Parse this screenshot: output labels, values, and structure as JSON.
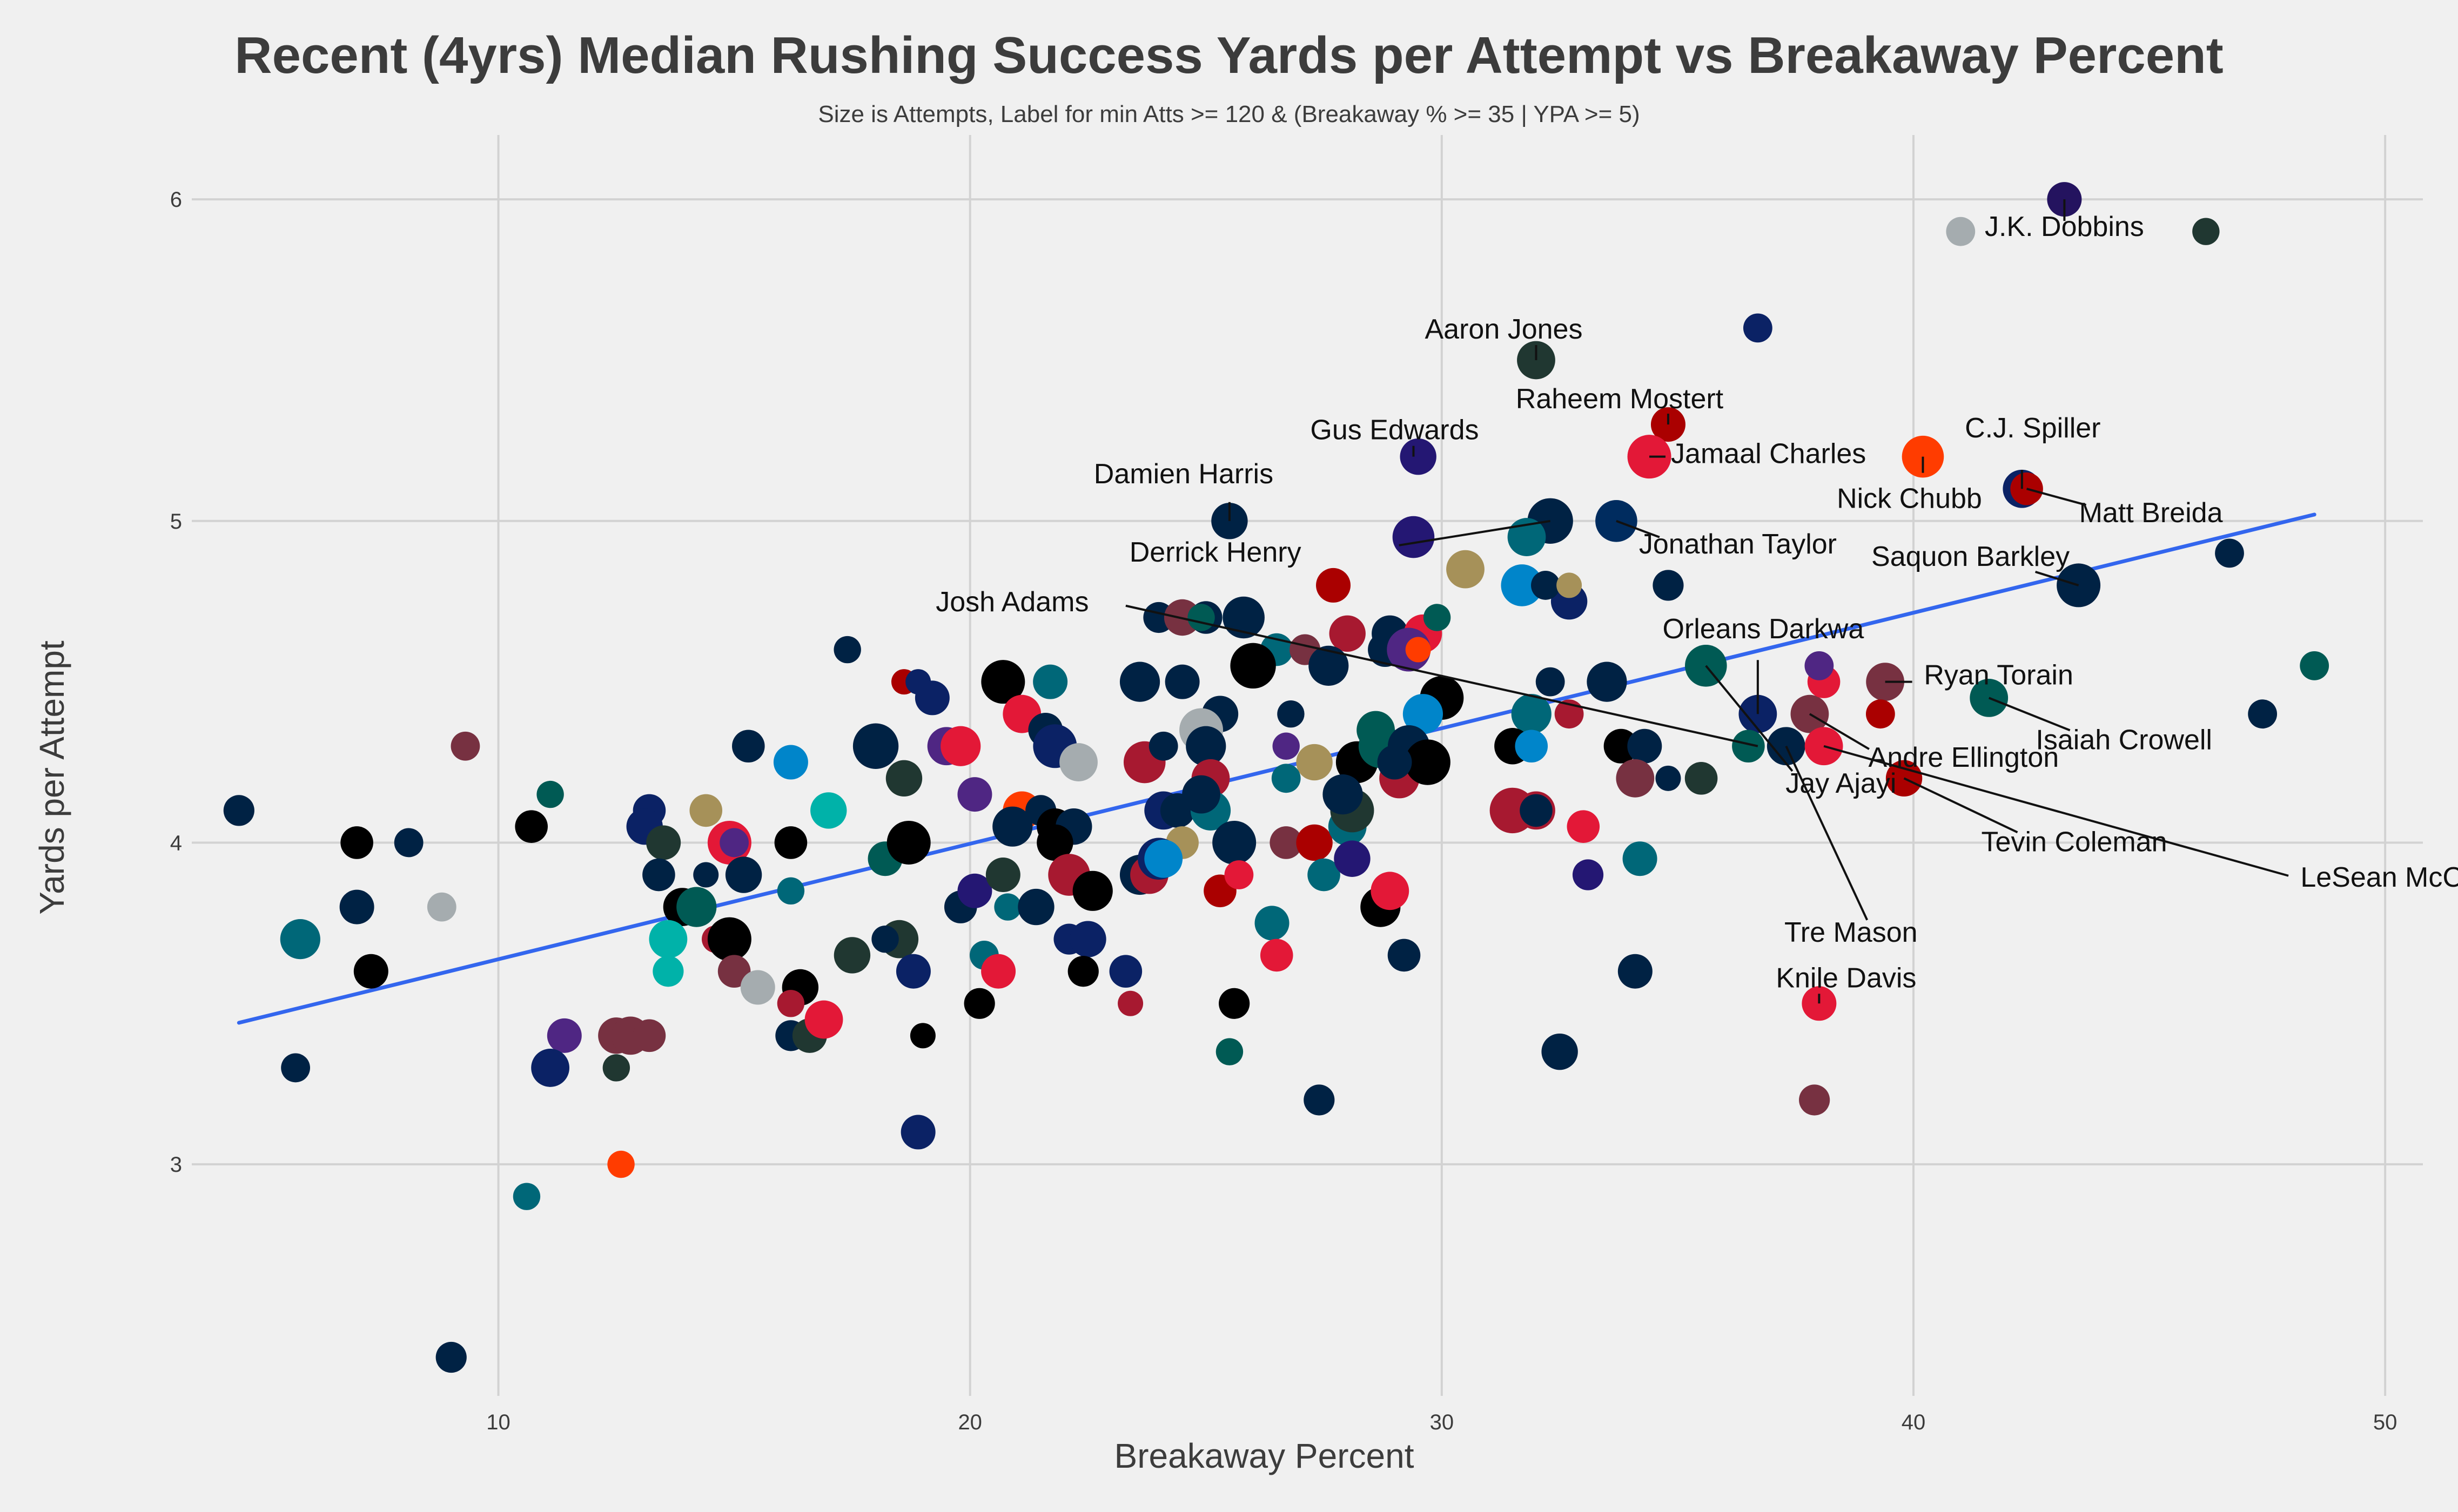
{
  "chart_data": {
    "type": "scatter",
    "title": "Recent (4yrs) Median Rushing Success Yards per Attempt vs Breakaway Percent",
    "subtitle": "Size is Attempts, Label for min Atts >= 120 & (Breakaway % >= 35 | YPA >= 5)",
    "xlabel": "Breakaway Percent",
    "ylabel": "Yards per Attempt",
    "xlim": [
      3.5,
      50.8
    ],
    "ylim": [
      2.28,
      6.2
    ],
    "x_ticks": [
      10,
      20,
      30,
      40,
      50
    ],
    "y_ticks": [
      3,
      4,
      5,
      6
    ],
    "grid": true,
    "trend": {
      "x1": 4.5,
      "y1": 3.44,
      "x2": 48.5,
      "y2": 5.02,
      "color": "#3366ee"
    },
    "labels": [
      {
        "text": "J.K. Dobbins",
        "x": 43.2,
        "y": 6.0
      },
      {
        "text": "Aaron Jones",
        "x": 32.0,
        "y": 5.5
      },
      {
        "text": "Raheem Mostert",
        "x": 34.8,
        "y": 5.3
      },
      {
        "text": "Jamaal Charles",
        "x": 34.4,
        "y": 5.2
      },
      {
        "text": "C.J. Spiller",
        "x": 42.3,
        "y": 5.1
      },
      {
        "text": "Nick Chubb",
        "x": 40.2,
        "y": 5.2
      },
      {
        "text": "Matt Breida",
        "x": 42.4,
        "y": 5.1
      },
      {
        "text": "Damien Harris",
        "x": 25.5,
        "y": 5.0
      },
      {
        "text": "Gus Edwards",
        "x": 29.4,
        "y": 5.2
      },
      {
        "text": "Derrick Henry",
        "x": 32.3,
        "y": 5.0
      },
      {
        "text": "Jonathan Taylor",
        "x": 33.7,
        "y": 5.0
      },
      {
        "text": "Josh Adams",
        "x": 36.7,
        "y": 4.3
      },
      {
        "text": "Saquon Barkley",
        "x": 43.5,
        "y": 4.8
      },
      {
        "text": "Orleans Darkwa",
        "x": 36.7,
        "y": 4.4
      },
      {
        "text": "Ryan Torain",
        "x": 39.4,
        "y": 4.5
      },
      {
        "text": "Isaiah Crowell",
        "x": 41.6,
        "y": 4.45
      },
      {
        "text": "Andre Ellington",
        "x": 37.8,
        "y": 4.4
      },
      {
        "text": "LeSean McCoy",
        "x": 38.1,
        "y": 4.3
      },
      {
        "text": "Jay Ajayi",
        "x": 35.6,
        "y": 4.55
      },
      {
        "text": "Tevin Coleman",
        "x": 39.8,
        "y": 4.2
      },
      {
        "text": "Tre Mason",
        "x": 37.3,
        "y": 4.3
      },
      {
        "text": "Knile Davis",
        "x": 38.0,
        "y": 3.5
      }
    ],
    "points": [
      [
        43.2,
        6.0,
        1.0,
        "#24135f"
      ],
      [
        41.0,
        5.9,
        0.7,
        "#a5acaf"
      ],
      [
        46.2,
        5.9,
        0.6,
        "#203731"
      ],
      [
        32.0,
        5.5,
        1.2,
        "#203731"
      ],
      [
        36.7,
        5.6,
        0.7,
        "#0b2265"
      ],
      [
        34.8,
        5.3,
        1.0,
        "#aa0000"
      ],
      [
        34.4,
        5.2,
        1.5,
        "#e31837"
      ],
      [
        40.2,
        5.2,
        1.4,
        "#ff3c00"
      ],
      [
        42.3,
        5.1,
        1.2,
        "#0b2265"
      ],
      [
        42.4,
        5.1,
        0.9,
        "#aa0000"
      ],
      [
        29.5,
        5.2,
        1.1,
        "#241773"
      ],
      [
        25.5,
        5.0,
        1.1,
        "#002244"
      ],
      [
        32.3,
        5.0,
        1.6,
        "#002244"
      ],
      [
        33.7,
        5.0,
        1.4,
        "#002c5f"
      ],
      [
        29.4,
        4.95,
        1.4,
        "#241773"
      ],
      [
        31.8,
        4.95,
        1.2,
        "#006778"
      ],
      [
        30.5,
        4.85,
        1.2,
        "#a69159"
      ],
      [
        27.7,
        4.8,
        1.0,
        "#aa0000"
      ],
      [
        31.7,
        4.8,
        1.4,
        "#0085ca"
      ],
      [
        32.7,
        4.75,
        1.1,
        "#0b2265"
      ],
      [
        32.2,
        4.8,
        0.7,
        "#002244"
      ],
      [
        32.7,
        4.8,
        0.5,
        "#a69159"
      ],
      [
        34.8,
        4.8,
        0.8,
        "#002244"
      ],
      [
        43.5,
        4.8,
        1.5,
        "#002244"
      ],
      [
        46.7,
        4.9,
        0.7,
        "#002244"
      ],
      [
        48.5,
        4.55,
        0.7,
        "#005a54"
      ],
      [
        47.4,
        4.4,
        0.7,
        "#002244"
      ],
      [
        17.4,
        4.6,
        0.6,
        "#002244"
      ],
      [
        24.0,
        4.7,
        0.8,
        "#002244"
      ],
      [
        24.5,
        4.7,
        1.1,
        "#773141"
      ],
      [
        25.0,
        4.7,
        0.9,
        "#002244"
      ],
      [
        25.8,
        4.7,
        1.4,
        "#002244"
      ],
      [
        24.9,
        4.7,
        0.6,
        "#005a54"
      ],
      [
        26.5,
        4.6,
        0.9,
        "#006778"
      ],
      [
        27.1,
        4.6,
        0.8,
        "#773141"
      ],
      [
        28.0,
        4.65,
        1.1,
        "#a71930"
      ],
      [
        28.9,
        4.65,
        1.1,
        "#002244"
      ],
      [
        29.6,
        4.65,
        1.2,
        "#e31837"
      ],
      [
        29.9,
        4.7,
        0.6,
        "#005a54"
      ],
      [
        28.8,
        4.6,
        1.0,
        "#002244"
      ],
      [
        29.3,
        4.6,
        1.5,
        "#4f2683"
      ],
      [
        29.5,
        4.6,
        0.5,
        "#ff3c00"
      ],
      [
        27.6,
        4.55,
        1.3,
        "#002244"
      ],
      [
        26.0,
        4.55,
        1.6,
        "#000000"
      ],
      [
        20.7,
        4.5,
        1.5,
        "#000000"
      ],
      [
        21.7,
        4.5,
        1.0,
        "#006778"
      ],
      [
        23.6,
        4.5,
        1.3,
        "#002244"
      ],
      [
        24.5,
        4.5,
        1.0,
        "#002244"
      ],
      [
        18.6,
        4.5,
        0.5,
        "#aa0000"
      ],
      [
        18.9,
        4.5,
        0.5,
        "#0b2265"
      ],
      [
        19.2,
        4.45,
        1.0,
        "#0b2265"
      ],
      [
        21.1,
        4.4,
        1.2,
        "#e31837"
      ],
      [
        25.3,
        4.4,
        1.1,
        "#002244"
      ],
      [
        30.0,
        4.45,
        1.5,
        "#000000"
      ],
      [
        29.6,
        4.4,
        1.3,
        "#0085ca"
      ],
      [
        31.9,
        4.4,
        1.3,
        "#006778"
      ],
      [
        32.7,
        4.4,
        0.7,
        "#a71930"
      ],
      [
        33.5,
        4.5,
        1.3,
        "#002244"
      ],
      [
        32.3,
        4.5,
        0.7,
        "#002244"
      ],
      [
        35.6,
        4.55,
        1.4,
        "#005a54"
      ],
      [
        36.7,
        4.4,
        1.2,
        "#0b2265"
      ],
      [
        37.8,
        4.4,
        1.2,
        "#773141"
      ],
      [
        38.1,
        4.5,
        0.9,
        "#e31837"
      ],
      [
        38.0,
        4.55,
        0.7,
        "#4f2683"
      ],
      [
        39.4,
        4.5,
        1.2,
        "#773141"
      ],
      [
        39.3,
        4.4,
        0.7,
        "#aa0000"
      ],
      [
        41.6,
        4.45,
        1.2,
        "#005a54"
      ],
      [
        36.5,
        4.3,
        0.9,
        "#005a54"
      ],
      [
        37.3,
        4.3,
        1.2,
        "#002244"
      ],
      [
        38.1,
        4.3,
        1.2,
        "#e31837"
      ],
      [
        39.8,
        4.2,
        1.1,
        "#aa0000"
      ],
      [
        15.3,
        4.3,
        0.9,
        "#002244"
      ],
      [
        16.2,
        4.25,
        1.0,
        "#0085ca"
      ],
      [
        18.0,
        4.3,
        1.6,
        "#002244"
      ],
      [
        19.5,
        4.3,
        1.2,
        "#4f2683"
      ],
      [
        19.8,
        4.3,
        1.3,
        "#e31837"
      ],
      [
        21.6,
        4.35,
        1.0,
        "#002244"
      ],
      [
        21.8,
        4.3,
        1.5,
        "#0b2265"
      ],
      [
        22.3,
        4.25,
        1.2,
        "#a5acaf"
      ],
      [
        23.7,
        4.25,
        1.4,
        "#a71930"
      ],
      [
        24.1,
        4.3,
        0.7,
        "#002244"
      ],
      [
        24.9,
        4.35,
        1.5,
        "#a5acaf"
      ],
      [
        25.0,
        4.3,
        1.3,
        "#002244"
      ],
      [
        26.8,
        4.4,
        0.6,
        "#002244"
      ],
      [
        26.7,
        4.3,
        0.6,
        "#4f2683"
      ],
      [
        27.3,
        4.25,
        1.1,
        "#a69159"
      ],
      [
        26.7,
        4.2,
        0.7,
        "#006778"
      ],
      [
        28.2,
        4.25,
        1.4,
        "#000000"
      ],
      [
        28.7,
        4.3,
        1.5,
        "#005a54"
      ],
      [
        28.6,
        4.35,
        1.2,
        "#005a54"
      ],
      [
        29.3,
        4.3,
        1.4,
        "#002244"
      ],
      [
        29.1,
        4.2,
        1.3,
        "#a71930"
      ],
      [
        29.7,
        4.25,
        1.6,
        "#000000"
      ],
      [
        29.0,
        4.25,
        1.0,
        "#002244"
      ],
      [
        31.5,
        4.3,
        1.1,
        "#000000"
      ],
      [
        31.9,
        4.3,
        0.9,
        "#0085ca"
      ],
      [
        33.8,
        4.3,
        1.0,
        "#000000"
      ],
      [
        34.3,
        4.3,
        1.0,
        "#002244"
      ],
      [
        34.1,
        4.2,
        1.2,
        "#773141"
      ],
      [
        34.8,
        4.2,
        0.5,
        "#002244"
      ],
      [
        35.5,
        4.2,
        0.9,
        "#203731"
      ],
      [
        9.3,
        4.3,
        0.7,
        "#773141"
      ],
      [
        4.5,
        4.1,
        0.8,
        "#002244"
      ],
      [
        11.1,
        4.15,
        0.6,
        "#005a54"
      ],
      [
        10.7,
        4.05,
        0.9,
        "#000000"
      ],
      [
        7.0,
        4.0,
        0.9,
        "#000000"
      ],
      [
        8.1,
        4.0,
        0.7,
        "#002244"
      ],
      [
        13.2,
        4.1,
        0.9,
        "#0b2265"
      ],
      [
        13.1,
        4.05,
        1.1,
        "#0b2265"
      ],
      [
        13.5,
        4.0,
        1.0,
        "#203731"
      ],
      [
        14.4,
        4.1,
        0.9,
        "#a69159"
      ],
      [
        14.9,
        4.0,
        1.5,
        "#e31837"
      ],
      [
        15.0,
        4.0,
        0.7,
        "#4f2683"
      ],
      [
        16.2,
        4.0,
        0.9,
        "#000000"
      ],
      [
        17.0,
        4.1,
        1.1,
        "#00b2a9"
      ],
      [
        18.2,
        3.95,
        1.0,
        "#005a54"
      ],
      [
        18.7,
        4.0,
        1.5,
        "#000000"
      ],
      [
        18.6,
        4.2,
        1.1,
        "#203731"
      ],
      [
        20.1,
        4.15,
        1.0,
        "#4f2683"
      ],
      [
        21.1,
        4.1,
        1.2,
        "#ff3c00"
      ],
      [
        21.5,
        4.1,
        0.8,
        "#002244"
      ],
      [
        20.9,
        4.05,
        1.3,
        "#002244"
      ],
      [
        21.8,
        4.05,
        1.1,
        "#000000"
      ],
      [
        22.2,
        4.05,
        1.1,
        "#002244"
      ],
      [
        21.8,
        4.0,
        1.1,
        "#000000"
      ],
      [
        24.1,
        4.1,
        1.2,
        "#0b2265"
      ],
      [
        24.4,
        4.1,
        1.0,
        "#002244"
      ],
      [
        25.1,
        4.2,
        1.2,
        "#a71930"
      ],
      [
        25.1,
        4.1,
        1.3,
        "#006778"
      ],
      [
        24.9,
        4.15,
        1.2,
        "#002244"
      ],
      [
        24.5,
        4.0,
        0.9,
        "#a69159"
      ],
      [
        25.6,
        4.0,
        1.5,
        "#002244"
      ],
      [
        26.7,
        4.0,
        0.9,
        "#773141"
      ],
      [
        27.3,
        4.0,
        1.1,
        "#aa0000"
      ],
      [
        28.0,
        4.05,
        1.2,
        "#006778"
      ],
      [
        28.1,
        4.1,
        1.5,
        "#203731"
      ],
      [
        27.9,
        4.15,
        1.3,
        "#002244"
      ],
      [
        31.5,
        4.1,
        1.6,
        "#a71930"
      ],
      [
        32.0,
        4.1,
        1.2,
        "#a71930"
      ],
      [
        32.0,
        4.1,
        0.9,
        "#002244"
      ],
      [
        33.0,
        4.05,
        0.9,
        "#e31837"
      ],
      [
        34.2,
        3.95,
        1.0,
        "#006778"
      ],
      [
        33.1,
        3.9,
        0.8,
        "#241773"
      ],
      [
        13.4,
        3.9,
        0.9,
        "#002244"
      ],
      [
        15.2,
        3.9,
        1.1,
        "#002244"
      ],
      [
        14.4,
        3.9,
        0.5,
        "#002244"
      ],
      [
        16.2,
        3.85,
        0.6,
        "#006778"
      ],
      [
        5.8,
        3.7,
        1.3,
        "#006778"
      ],
      [
        7.0,
        3.8,
        1.0,
        "#002244"
      ],
      [
        8.8,
        3.8,
        0.7,
        "#a5acaf"
      ],
      [
        7.3,
        3.6,
        1.0,
        "#000000"
      ],
      [
        13.9,
        3.8,
        1.2,
        "#000000"
      ],
      [
        14.2,
        3.8,
        1.3,
        "#005a54"
      ],
      [
        13.6,
        3.7,
        1.2,
        "#00b2a9"
      ],
      [
        14.6,
        3.7,
        0.6,
        "#a71930"
      ],
      [
        14.9,
        3.7,
        1.5,
        "#000000"
      ],
      [
        13.6,
        3.6,
        0.8,
        "#00b2a9"
      ],
      [
        15.0,
        3.6,
        0.9,
        "#773141"
      ],
      [
        15.5,
        3.55,
        1.0,
        "#a5acaf"
      ],
      [
        16.4,
        3.55,
        1.1,
        "#000000"
      ],
      [
        17.5,
        3.65,
        1.1,
        "#203731"
      ],
      [
        18.5,
        3.7,
        1.2,
        "#203731"
      ],
      [
        18.2,
        3.7,
        0.6,
        "#002244"
      ],
      [
        18.8,
        3.6,
        1.0,
        "#0b2265"
      ],
      [
        19.8,
        3.8,
        0.9,
        "#002244"
      ],
      [
        20.1,
        3.85,
        1.0,
        "#241773"
      ],
      [
        20.7,
        3.9,
        1.0,
        "#203731"
      ],
      [
        20.8,
        3.8,
        0.6,
        "#006778"
      ],
      [
        21.4,
        3.8,
        1.1,
        "#002244"
      ],
      [
        22.1,
        3.9,
        1.4,
        "#a71930"
      ],
      [
        22.1,
        3.7,
        0.8,
        "#0b2265"
      ],
      [
        22.5,
        3.7,
        1.1,
        "#0b2265"
      ],
      [
        22.6,
        3.85,
        1.3,
        "#000000"
      ],
      [
        23.6,
        3.9,
        1.3,
        "#002244"
      ],
      [
        23.8,
        3.9,
        1.2,
        "#a71930"
      ],
      [
        24.0,
        3.95,
        1.4,
        "#0b2265"
      ],
      [
        24.1,
        3.95,
        1.2,
        "#0085ca"
      ],
      [
        25.3,
        3.85,
        0.9,
        "#aa0000"
      ],
      [
        25.7,
        3.9,
        0.7,
        "#e31837"
      ],
      [
        26.4,
        3.75,
        1.0,
        "#006778"
      ],
      [
        27.5,
        3.9,
        0.9,
        "#006778"
      ],
      [
        28.1,
        3.95,
        1.1,
        "#241773"
      ],
      [
        28.7,
        3.8,
        1.3,
        "#000000"
      ],
      [
        28.9,
        3.85,
        1.2,
        "#e31837"
      ],
      [
        20.3,
        3.65,
        0.7,
        "#006778"
      ],
      [
        20.6,
        3.6,
        1.0,
        "#e31837"
      ],
      [
        22.4,
        3.6,
        0.8,
        "#000000"
      ],
      [
        23.3,
        3.6,
        0.9,
        "#0b2265"
      ],
      [
        26.5,
        3.65,
        0.9,
        "#e31837"
      ],
      [
        29.2,
        3.65,
        0.9,
        "#002244"
      ],
      [
        34.1,
        3.6,
        1.0,
        "#002244"
      ],
      [
        38.0,
        3.5,
        1.0,
        "#e31837"
      ],
      [
        12.5,
        3.4,
        1.1,
        "#773141"
      ],
      [
        12.8,
        3.4,
        1.2,
        "#773141"
      ],
      [
        13.2,
        3.4,
        0.9,
        "#773141"
      ],
      [
        11.4,
        3.4,
        1.0,
        "#4f2683"
      ],
      [
        11.1,
        3.3,
        1.2,
        "#0b2265"
      ],
      [
        12.5,
        3.3,
        0.6,
        "#203731"
      ],
      [
        16.2,
        3.5,
        0.6,
        "#a71930"
      ],
      [
        16.2,
        3.4,
        0.8,
        "#002244"
      ],
      [
        16.6,
        3.4,
        1.0,
        "#203731"
      ],
      [
        16.9,
        3.45,
        1.2,
        "#e31837"
      ],
      [
        20.2,
        3.5,
        0.8,
        "#000000"
      ],
      [
        19.0,
        3.4,
        0.5,
        "#000000"
      ],
      [
        23.4,
        3.5,
        0.5,
        "#a71930"
      ],
      [
        25.6,
        3.5,
        0.8,
        "#000000"
      ],
      [
        25.5,
        3.35,
        0.6,
        "#005a54"
      ],
      [
        32.5,
        3.35,
        1.1,
        "#002244"
      ],
      [
        27.4,
        3.2,
        0.8,
        "#002244"
      ],
      [
        37.9,
        3.2,
        0.8,
        "#773141"
      ],
      [
        5.7,
        3.3,
        0.7,
        "#002244"
      ],
      [
        12.6,
        3.0,
        0.6,
        "#ff3c00"
      ],
      [
        10.6,
        2.9,
        0.6,
        "#006778"
      ],
      [
        18.9,
        3.1,
        1.0,
        "#0b2265"
      ],
      [
        9.0,
        2.4,
        0.8,
        "#002244"
      ]
    ]
  }
}
